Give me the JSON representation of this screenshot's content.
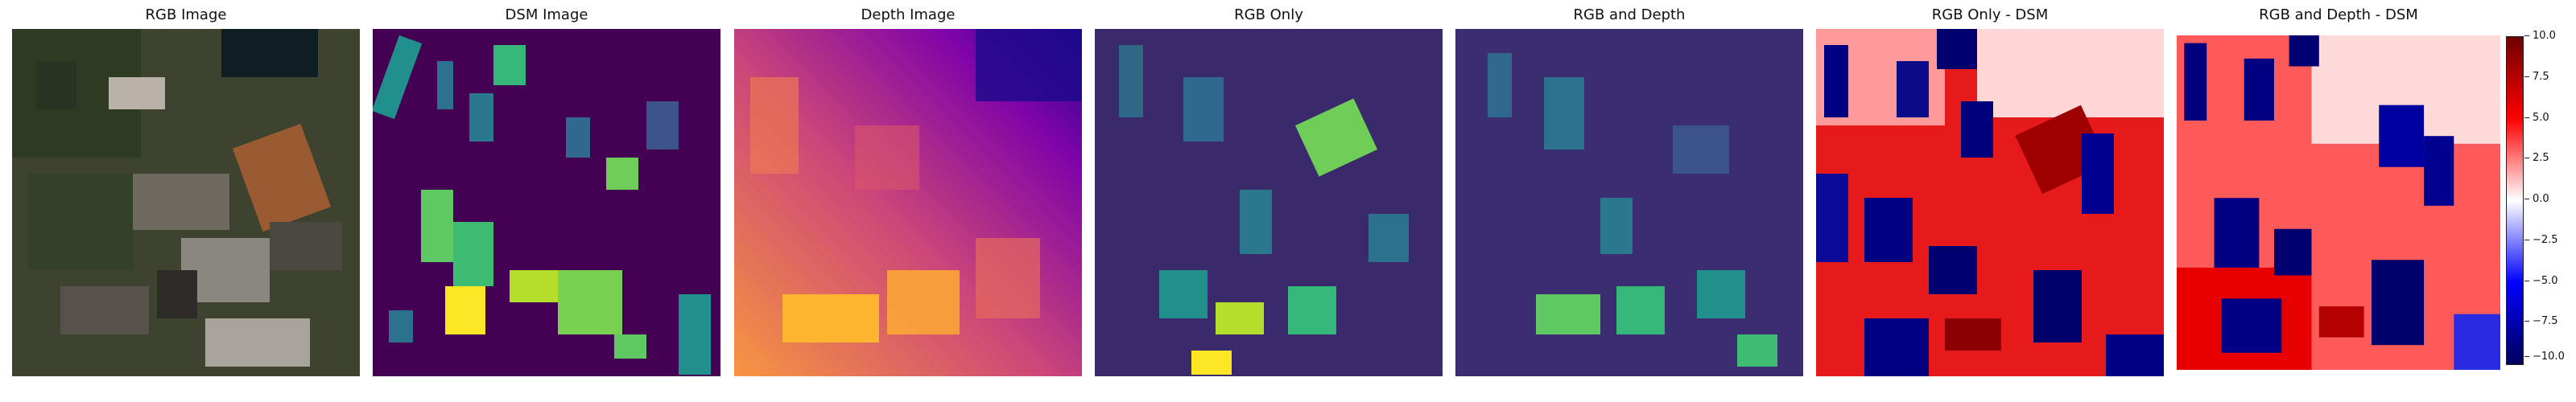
{
  "panels": [
    {
      "title": "RGB Image"
    },
    {
      "title": "DSM Image"
    },
    {
      "title": "Depth Image"
    },
    {
      "title": "RGB Only"
    },
    {
      "title": "RGB and Depth"
    },
    {
      "title": "RGB Only - DSM"
    },
    {
      "title": "RGB and Depth - DSM"
    }
  ],
  "colorbar": {
    "ticks": [
      "10.0",
      "7.5",
      "5.0",
      "2.5",
      "0.0",
      "−2.5",
      "−5.0",
      "−7.5",
      "−10.0"
    ],
    "range": [
      -10,
      10
    ],
    "colormap": "seismic"
  }
}
